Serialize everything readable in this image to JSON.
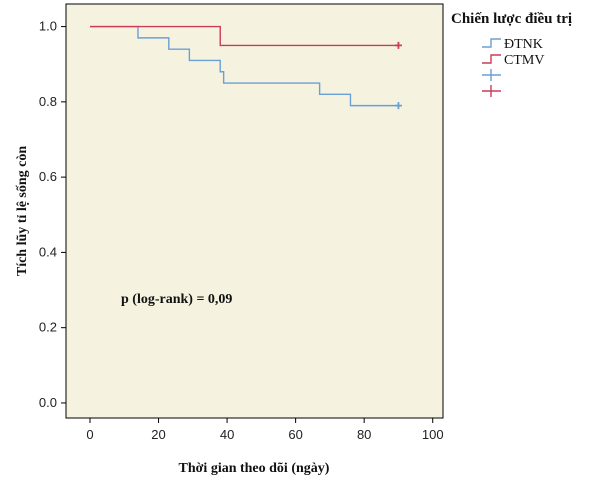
{
  "chart_data": {
    "type": "line",
    "subtype": "kaplan-meier",
    "xlabel": "Thời gian theo dõi (ngày)",
    "ylabel": "Tích lũy tỉ lệ sống còn",
    "xlim": [
      -7,
      103
    ],
    "ylim": [
      -0.04,
      1.06
    ],
    "xticks": [
      0,
      20,
      40,
      60,
      80,
      100
    ],
    "yticks": [
      0.0,
      0.2,
      0.4,
      0.6,
      0.8,
      1.0
    ],
    "xtick_labels": [
      "0",
      "20",
      "40",
      "60",
      "80",
      "100"
    ],
    "ytick_labels": [
      "0.0",
      "0.2",
      "0.4",
      "0.6",
      "0.8",
      "1.0"
    ],
    "plot_background": "#f5f3e0",
    "grid": false,
    "legend": {
      "title": "Chiến lược điều trị",
      "placement": "right",
      "entries": [
        "ĐTNK",
        "CTMV"
      ],
      "censored_markers": true
    },
    "annotation": "p (log-rank) = 0,09",
    "series": [
      {
        "name": "ĐTNK",
        "color": "#6a9fd6",
        "steps": [
          [
            0,
            1.0
          ],
          [
            14,
            0.97
          ],
          [
            23,
            0.94
          ],
          [
            29,
            0.91
          ],
          [
            38,
            0.88
          ],
          [
            39,
            0.85
          ],
          [
            67,
            0.82
          ],
          [
            76,
            0.79
          ],
          [
            90,
            0.79
          ]
        ],
        "censored": [
          [
            90,
            0.79
          ]
        ]
      },
      {
        "name": "CTMV",
        "color": "#cc3b5a",
        "steps": [
          [
            0,
            1.0
          ],
          [
            38,
            0.95
          ],
          [
            90,
            0.95
          ]
        ],
        "censored": [
          [
            90,
            0.95
          ]
        ]
      }
    ]
  }
}
